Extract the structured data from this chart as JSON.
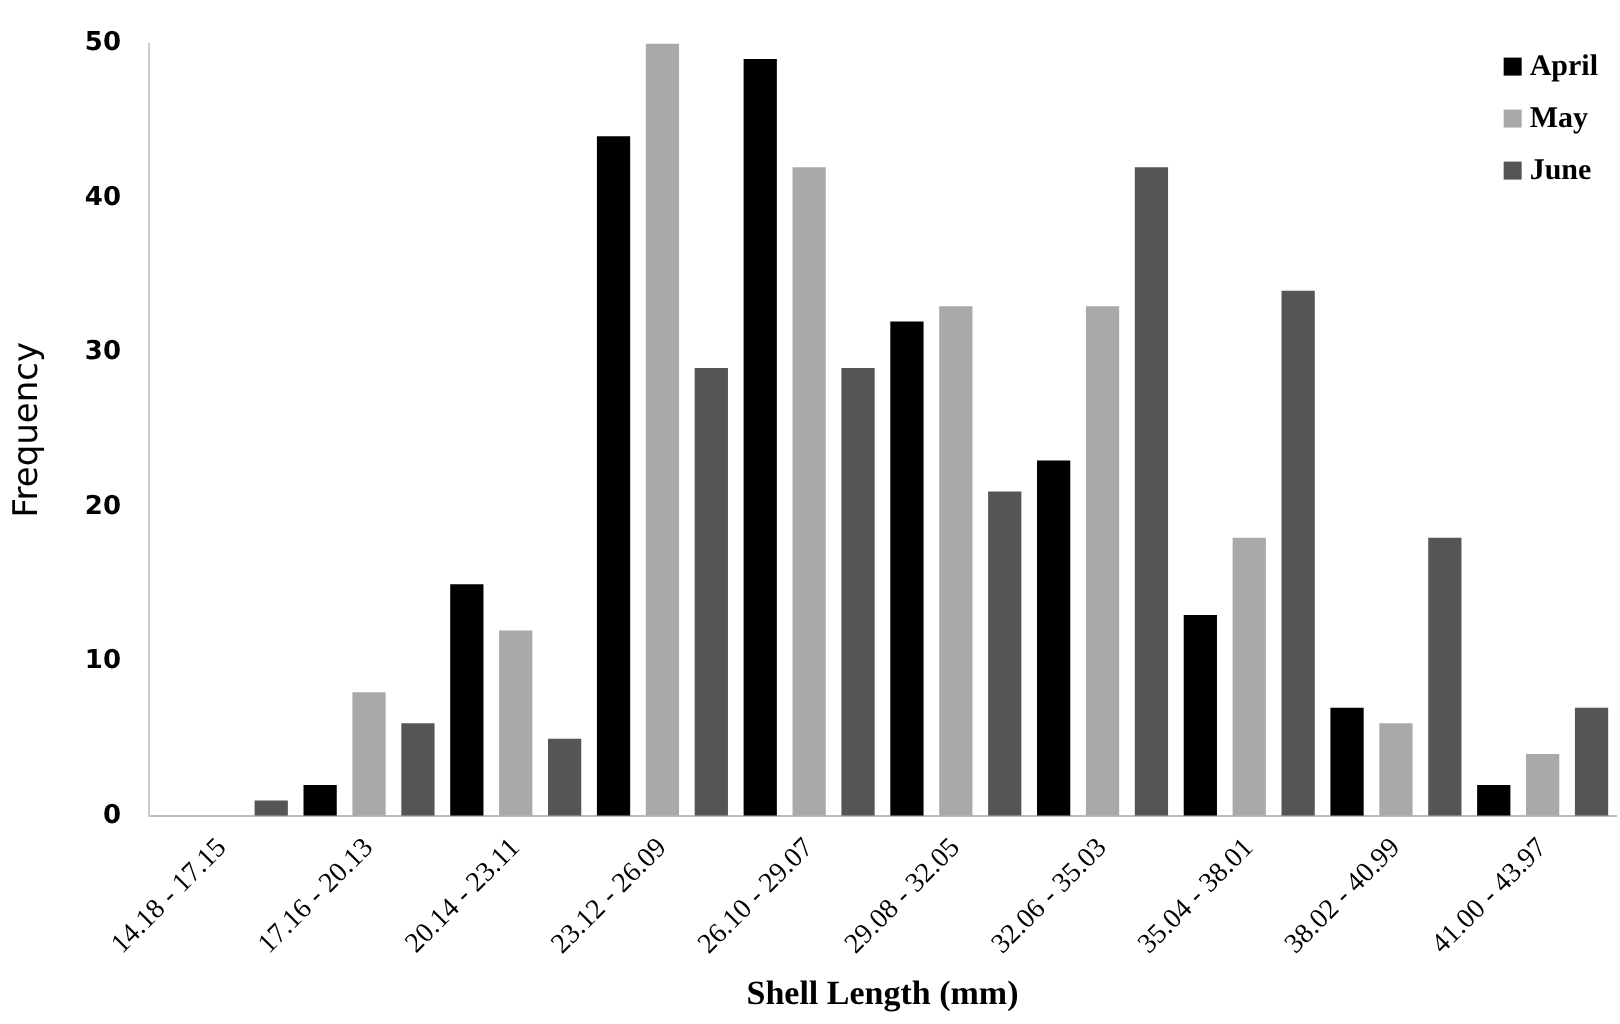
{
  "chart_data": {
    "type": "bar",
    "xlabel": "Shell Length (mm)",
    "ylabel": "Frequency",
    "categories": [
      "14.18 - 17.15",
      "17.16 - 20.13",
      "20.14 - 23.11",
      "23.12 - 26.09",
      "26.10 - 29.07",
      "29.08 - 32.05",
      "32.06 - 35.03",
      "35.04 - 38.01",
      "38.02 - 40.99",
      "41.00 - 43.97"
    ],
    "series": [
      {
        "name": "April",
        "color": "#000000",
        "values": [
          0,
          2,
          15,
          44,
          49,
          32,
          23,
          13,
          7,
          2
        ]
      },
      {
        "name": "May",
        "color": "#a9a9a9",
        "values": [
          0,
          8,
          12,
          50,
          42,
          33,
          33,
          18,
          6,
          4
        ]
      },
      {
        "name": "June",
        "color": "#555555",
        "values": [
          1,
          6,
          5,
          29,
          29,
          21,
          42,
          34,
          18,
          7
        ]
      }
    ],
    "ylim": [
      0,
      50
    ],
    "yticks": [
      0,
      10,
      20,
      30,
      40,
      50
    ],
    "grid": false,
    "legend": "top right"
  }
}
